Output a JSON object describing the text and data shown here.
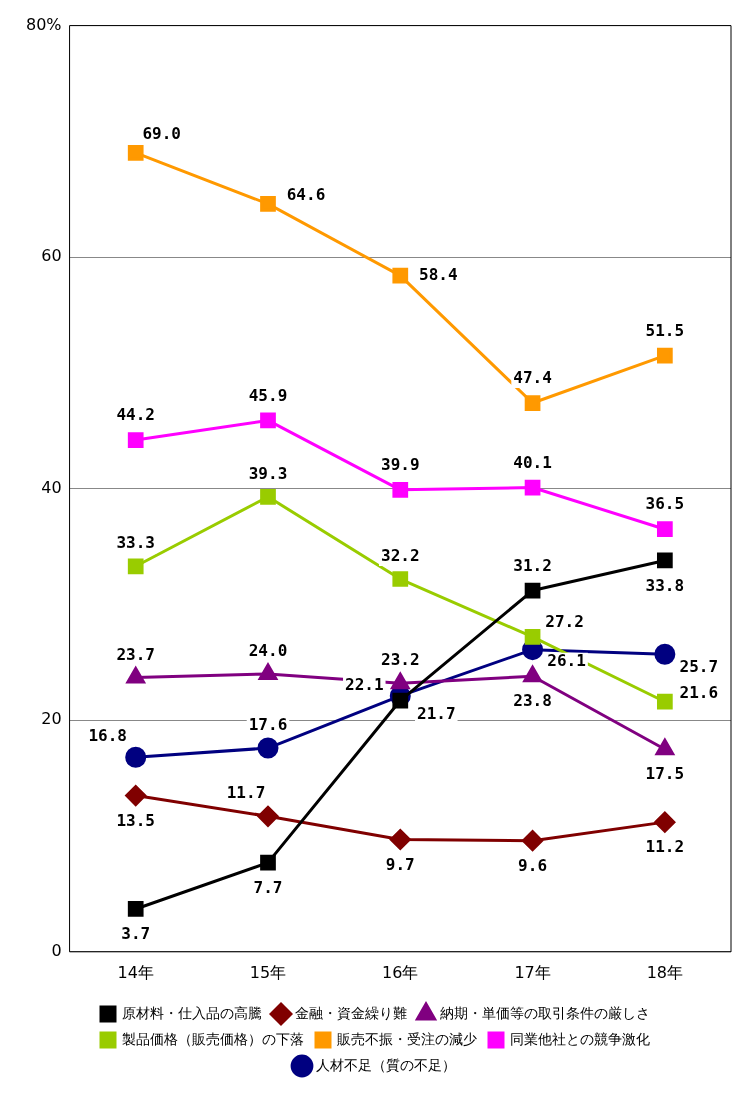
{
  "chart_data": {
    "type": "line",
    "categories": [
      "14年",
      "15年",
      "16年",
      "17年",
      "18年"
    ],
    "series": [
      {
        "name": "人材不足（質の不足）",
        "color": "#000080",
        "marker": "circle",
        "values": [
          16.8,
          17.6,
          22.1,
          26.1,
          25.7
        ],
        "value_labels": [
          "16.8",
          "17.6",
          "22.1",
          "26.1",
          "25.7"
        ]
      },
      {
        "name": "同業他社との競争激化",
        "color": "#ff00ff",
        "marker": "square",
        "values": [
          44.2,
          45.9,
          39.9,
          40.1,
          36.5
        ],
        "value_labels": [
          "44.2",
          "45.9",
          "39.9",
          "40.1",
          "36.5"
        ]
      },
      {
        "name": "販売不振・受注の減少",
        "color": "#ff9900",
        "marker": "square",
        "values": [
          69.0,
          64.6,
          58.4,
          47.4,
          51.5
        ],
        "value_labels": [
          "69.0",
          "64.6",
          "58.4",
          "47.4",
          "51.5"
        ]
      },
      {
        "name": "製品価格（販売価格）の下落",
        "color": "#99cc00",
        "marker": "square",
        "values": [
          33.3,
          39.3,
          32.2,
          27.2,
          21.6
        ],
        "value_labels": [
          "33.3",
          "39.3",
          "32.2",
          "27.2",
          "21.6"
        ]
      },
      {
        "name": "納期・単価等の取引条件の厳しさ",
        "color": "#800080",
        "marker": "triangle",
        "values": [
          23.7,
          24.0,
          23.2,
          23.8,
          17.5
        ],
        "value_labels": [
          "23.7",
          "24.0",
          "23.2",
          "23.8",
          "17.5"
        ]
      },
      {
        "name": "金融・資金繰り難",
        "color": "#800000",
        "marker": "diamond",
        "values": [
          13.5,
          11.7,
          9.7,
          9.6,
          11.2
        ],
        "value_labels": [
          "13.5",
          "11.7",
          "9.7",
          "9.6",
          "11.2"
        ]
      },
      {
        "name": "原材料・仕入品の高騰",
        "color": "#000000",
        "marker": "square",
        "values": [
          3.7,
          7.7,
          21.7,
          31.2,
          33.8
        ],
        "value_labels": [
          "3.7",
          "7.7",
          "21.7",
          "31.2",
          "33.8"
        ]
      }
    ],
    "ylim": [
      0,
      80
    ],
    "yticks": [
      0,
      20,
      40,
      60,
      {
        "value": 80,
        "label": "80%"
      }
    ],
    "grid": "y",
    "legend": "bottom"
  }
}
